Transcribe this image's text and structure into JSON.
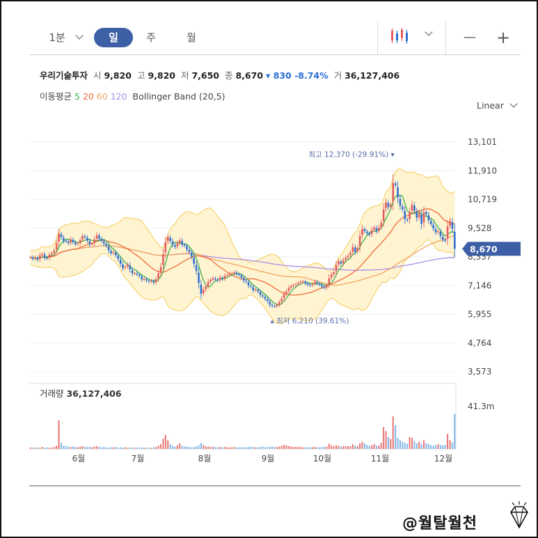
{
  "toolbar": {
    "interval_label": "1분",
    "tabs": [
      "일",
      "주",
      "월"
    ],
    "active_tab": 0,
    "chart_icon": "candlestick-icon",
    "zoom_out": "—",
    "zoom_in": "+"
  },
  "quote": {
    "name": "우리기술투자",
    "open_label": "시",
    "open": "9,820",
    "high_label": "고",
    "high": "9,820",
    "low_label": "저",
    "low": "7,650",
    "close_label": "종",
    "close": "8,670",
    "change": "▾ 830 -8.74%",
    "volume_label": "거",
    "volume": "36,127,406"
  },
  "indicators": {
    "ma_label": "이동평균",
    "ma_periods": [
      "5",
      "20",
      "60",
      "120"
    ],
    "bb_label": "Bollinger Band (20,5)"
  },
  "scale_mode": "Linear",
  "volume_panel": {
    "label": "거래량",
    "value": "36,127,406",
    "max_label": "41.3m"
  },
  "watermark": "@월탈월천",
  "colors": {
    "up": "#e45c5c",
    "down": "#2f6fd0",
    "ma5": "#3db34a",
    "ma20": "#ef6a3a",
    "ma60": "#f2a35f",
    "ma120": "#a98ee8",
    "band_fill": "#fff3cc",
    "band_line": "#f5d36e",
    "accent": "#3d5fa6"
  },
  "chart_data": {
    "type": "candlestick",
    "x_ticks": [
      "6월",
      "7월",
      "8월",
      "9월",
      "10월",
      "11월",
      "12월"
    ],
    "y_ticks": [
      "13,101",
      "11,910",
      "10,719",
      "9,528",
      "8,337",
      "7,146",
      "5,955",
      "4,764",
      "3,573"
    ],
    "ylim": [
      3573,
      13101
    ],
    "current_price": "8,670",
    "annotations": {
      "high": "최고 12,370 (-29.91%)",
      "low": "최저 6,210 (39.61%)"
    },
    "close": [
      8320,
      8250,
      8310,
      8220,
      8400,
      8450,
      8300,
      8280,
      8420,
      8480,
      8600,
      8900,
      9300,
      9150,
      9000,
      8980,
      8900,
      9060,
      8950,
      8860,
      8880,
      9030,
      9200,
      9150,
      9010,
      8860,
      8880,
      9060,
      9240,
      9100,
      9000,
      8880,
      8800,
      8600,
      8480,
      8530,
      8400,
      8250,
      8050,
      7870,
      7920,
      8010,
      7820,
      7650,
      7660,
      7600,
      7540,
      7400,
      7420,
      7350,
      7310,
      7350,
      7260,
      7410,
      7650,
      7920,
      8450,
      8950,
      9150,
      9000,
      8840,
      8750,
      8900,
      9020,
      8850,
      8800,
      8650,
      8540,
      8350,
      8050,
      7750,
      7250,
      6800,
      6980,
      7100,
      7300,
      7380,
      7450,
      7400,
      7350,
      7480,
      7420,
      7550,
      7580,
      7640,
      7650,
      7700,
      7620,
      7580,
      7480,
      7350,
      7300,
      7150,
      7100,
      6950,
      6980,
      6900,
      6750,
      6700,
      6600,
      6500,
      6350,
      6300,
      6280,
      6340,
      6450,
      6600,
      6800,
      6900,
      7050,
      7120,
      7160,
      7200,
      7250,
      7300,
      7320,
      7240,
      7180,
      7150,
      7210,
      7300,
      7240,
      7180,
      7100,
      7050,
      7150,
      7450,
      7600,
      7700,
      8000,
      8150,
      8050,
      8200,
      8300,
      8380,
      8500,
      8750,
      8550,
      8700,
      9200,
      9500,
      9400,
      9320,
      9250,
      9450,
      9550,
      9400,
      9550,
      9750,
      10300,
      10600,
      10400,
      10500,
      11400,
      11300,
      10800,
      10450,
      10300,
      9900,
      9850,
      10200,
      10500,
      10250,
      9950,
      10150,
      9700,
      10200,
      10100,
      9850,
      9700,
      9520,
      9350,
      9400,
      9200,
      9050,
      9000,
      9600,
      9820,
      9500,
      8670
    ],
    "ma5_label": "5",
    "ma20_label": "20",
    "ma60_label": "60",
    "ma120_label": "120",
    "volume_relative": [
      0.04,
      0.03,
      0.03,
      0.04,
      0.03,
      0.05,
      0.03,
      0.04,
      0.03,
      0.03,
      0.05,
      0.08,
      0.72,
      0.15,
      0.08,
      0.07,
      0.06,
      0.05,
      0.06,
      0.05,
      0.04,
      0.06,
      0.07,
      0.05,
      0.05,
      0.05,
      0.04,
      0.06,
      0.07,
      0.05,
      0.04,
      0.05,
      0.04,
      0.03,
      0.04,
      0.04,
      0.05,
      0.03,
      0.04,
      0.03,
      0.04,
      0.03,
      0.04,
      0.03,
      0.03,
      0.04,
      0.03,
      0.04,
      0.03,
      0.03,
      0.03,
      0.03,
      0.04,
      0.05,
      0.08,
      0.12,
      0.26,
      0.35,
      0.22,
      0.12,
      0.08,
      0.06,
      0.09,
      0.14,
      0.08,
      0.06,
      0.06,
      0.05,
      0.04,
      0.05,
      0.06,
      0.09,
      0.15,
      0.1,
      0.06,
      0.06,
      0.05,
      0.05,
      0.05,
      0.04,
      0.05,
      0.04,
      0.05,
      0.04,
      0.04,
      0.04,
      0.05,
      0.04,
      0.04,
      0.04,
      0.04,
      0.04,
      0.05,
      0.05,
      0.05,
      0.04,
      0.04,
      0.05,
      0.06,
      0.04,
      0.05,
      0.06,
      0.06,
      0.05,
      0.05,
      0.06,
      0.08,
      0.1,
      0.09,
      0.07,
      0.06,
      0.05,
      0.05,
      0.05,
      0.05,
      0.04,
      0.04,
      0.04,
      0.04,
      0.04,
      0.05,
      0.04,
      0.04,
      0.05,
      0.05,
      0.06,
      0.13,
      0.09,
      0.07,
      0.09,
      0.08,
      0.06,
      0.07,
      0.07,
      0.07,
      0.07,
      0.12,
      0.08,
      0.07,
      0.14,
      0.18,
      0.14,
      0.1,
      0.08,
      0.09,
      0.12,
      0.08,
      0.08,
      0.15,
      0.55,
      0.45,
      0.3,
      0.25,
      0.82,
      0.6,
      0.28,
      0.22,
      0.18,
      0.15,
      0.13,
      0.3,
      0.28,
      0.2,
      0.14,
      0.18,
      0.12,
      0.22,
      0.14,
      0.12,
      0.1,
      0.08,
      0.1,
      0.12,
      0.1,
      0.09,
      0.1,
      0.38,
      0.22,
      0.16,
      0.88
    ]
  }
}
